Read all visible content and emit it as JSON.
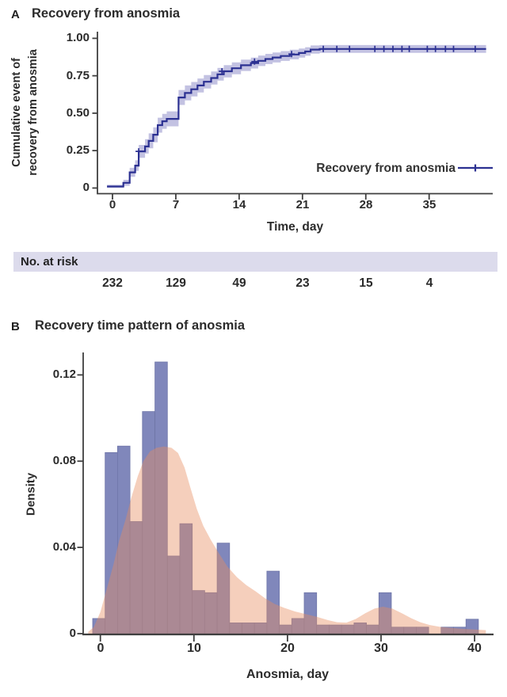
{
  "panel_a": {
    "label": "A",
    "title": "Recovery from anosmia",
    "legend_label": "Recovery from anosmia",
    "ylabel_line1": "Cumulative event of",
    "ylabel_line2": "recovery from anosmia",
    "xlabel": "Time, day",
    "at_risk_header": "No. at risk"
  },
  "panel_b": {
    "label": "B",
    "title": "Recovery time pattern of anosmia",
    "ylabel": "Density",
    "xlabel": "Anosmia, day"
  },
  "colors": {
    "km_line": "#2c3192",
    "km_band": "#7a78be",
    "km_band_opacity": 0.45,
    "bar": "#8087bb",
    "bar_edge": "#6f76a8",
    "density": "#e68c5f",
    "density_opacity": 0.42,
    "axis": "#3f3f3f",
    "strip_bg": "#dcdbec",
    "text": "#262626"
  },
  "chart_data": [
    {
      "type": "line",
      "subtype": "kaplan-meier-cumulative-incidence",
      "title": "Recovery from anosmia",
      "xlabel": "Time, day",
      "ylabel": "Cumulative event of recovery from anosmia",
      "xlim": [
        -1.7,
        42
      ],
      "ylim": [
        0,
        1.0
      ],
      "x_ticks": [
        "0",
        "7",
        "14",
        "21",
        "28",
        "35"
      ],
      "x_tick_values": [
        0,
        7,
        14,
        21,
        28,
        35
      ],
      "y_ticks": [
        "1.00",
        "0.75",
        "0.50",
        "0.25",
        "0"
      ],
      "y_tick_values": [
        1.0,
        0.75,
        0.5,
        0.25,
        0
      ],
      "grid": false,
      "legend_position": "bottom-right",
      "series": [
        {
          "name": "Recovery from anosmia",
          "x_start": -0.6,
          "x_end": 41.3,
          "steps": [
            [
              -0.6,
              0.01
            ],
            [
              1.2,
              0.035
            ],
            [
              1.9,
              0.105
            ],
            [
              2.5,
              0.15
            ],
            [
              2.9,
              0.245
            ],
            [
              3.6,
              0.278
            ],
            [
              4.0,
              0.315
            ],
            [
              4.5,
              0.356
            ],
            [
              5.0,
              0.42
            ],
            [
              5.5,
              0.446
            ],
            [
              6.0,
              0.462
            ],
            [
              7.3,
              0.605
            ],
            [
              8.0,
              0.635
            ],
            [
              8.7,
              0.66
            ],
            [
              9.4,
              0.685
            ],
            [
              10.1,
              0.71
            ],
            [
              10.9,
              0.735
            ],
            [
              11.6,
              0.76
            ],
            [
              12.3,
              0.78
            ],
            [
              13.2,
              0.8
            ],
            [
              14.2,
              0.82
            ],
            [
              15.3,
              0.835
            ],
            [
              16.1,
              0.85
            ],
            [
              16.9,
              0.862
            ],
            [
              17.7,
              0.872
            ],
            [
              18.6,
              0.882
            ],
            [
              19.6,
              0.892
            ],
            [
              20.6,
              0.902
            ],
            [
              21.3,
              0.912
            ],
            [
              21.9,
              0.925
            ],
            [
              22.9,
              0.929
            ]
          ],
          "censor_marks": [
            [
              2.9,
              0.245
            ],
            [
              12.1,
              0.78
            ],
            [
              15.7,
              0.845
            ],
            [
              19.8,
              0.895
            ],
            [
              23.3,
              0.929
            ],
            [
              24.8,
              0.929
            ],
            [
              26.2,
              0.929
            ],
            [
              29.0,
              0.929
            ],
            [
              30.0,
              0.929
            ],
            [
              31.0,
              0.929
            ],
            [
              32.0,
              0.929
            ],
            [
              32.8,
              0.929
            ],
            [
              34.8,
              0.929
            ],
            [
              35.7,
              0.929
            ],
            [
              36.8,
              0.929
            ],
            [
              37.7,
              0.929
            ],
            [
              40.1,
              0.929
            ]
          ],
          "ci_halfwidth": [
            [
              0,
              0.012
            ],
            [
              1.2,
              0.02
            ],
            [
              1.9,
              0.03
            ],
            [
              2.5,
              0.035
            ],
            [
              3,
              0.045
            ],
            [
              4,
              0.05
            ],
            [
              8,
              0.05
            ],
            [
              10,
              0.045
            ],
            [
              13,
              0.04
            ],
            [
              17,
              0.034
            ],
            [
              20,
              0.032
            ],
            [
              21.5,
              0.028
            ],
            [
              23,
              0.026
            ],
            [
              41.3,
              0.026
            ]
          ]
        }
      ],
      "at_risk": {
        "label": "No. at risk",
        "times": [
          0,
          7,
          14,
          21,
          28,
          35
        ],
        "counts": [
          "232",
          "129",
          "49",
          "23",
          "15",
          "4"
        ]
      }
    },
    {
      "type": "bar",
      "subtype": "histogram-with-density-overlay",
      "title": "Recovery time pattern of anosmia",
      "xlabel": "Anosmia, day",
      "ylabel": "Density",
      "xlim": [
        -2,
        42
      ],
      "ylim": [
        0,
        0.135
      ],
      "x_ticks": [
        "0",
        "10",
        "20",
        "30",
        "40"
      ],
      "x_tick_values": [
        0,
        10,
        20,
        30,
        40
      ],
      "y_ticks": [
        "0.12",
        "0.08",
        "0.04",
        "0"
      ],
      "y_tick_values": [
        0.12,
        0.08,
        0.04,
        0
      ],
      "grid": false,
      "bars": [
        [
          -0.82,
          0.51,
          0.007
        ],
        [
          0.51,
          1.84,
          0.084
        ],
        [
          1.84,
          3.17,
          0.087
        ],
        [
          3.17,
          4.5,
          0.052
        ],
        [
          4.5,
          5.83,
          0.103
        ],
        [
          5.83,
          7.16,
          0.126
        ],
        [
          7.16,
          8.49,
          0.036
        ],
        [
          8.49,
          9.82,
          0.051
        ],
        [
          9.82,
          11.15,
          0.02
        ],
        [
          11.15,
          12.48,
          0.019
        ],
        [
          12.48,
          13.81,
          0.042
        ],
        [
          13.81,
          15.14,
          0.005
        ],
        [
          15.14,
          16.47,
          0.005
        ],
        [
          16.47,
          17.8,
          0.005
        ],
        [
          17.8,
          19.13,
          0.029
        ],
        [
          19.13,
          20.46,
          0.004
        ],
        [
          20.46,
          21.79,
          0.007
        ],
        [
          21.79,
          23.12,
          0.019
        ],
        [
          23.12,
          24.45,
          0.004
        ],
        [
          24.45,
          25.78,
          0.004
        ],
        [
          25.78,
          27.11,
          0.004
        ],
        [
          27.11,
          28.44,
          0.005
        ],
        [
          28.44,
          29.77,
          0.004
        ],
        [
          29.77,
          31.1,
          0.019
        ],
        [
          31.1,
          32.43,
          0.003
        ],
        [
          32.43,
          33.76,
          0.003
        ],
        [
          33.76,
          35.09,
          0.003
        ],
        [
          36.42,
          37.75,
          0.003
        ],
        [
          37.75,
          39.08,
          0.003
        ],
        [
          39.08,
          40.41,
          0.0067
        ]
      ],
      "density_curve": [
        [
          -1.3,
          0.0008
        ],
        [
          -0.7,
          0.003
        ],
        [
          0,
          0.01
        ],
        [
          0.7,
          0.021
        ],
        [
          1.4,
          0.032
        ],
        [
          2,
          0.043
        ],
        [
          2.7,
          0.053
        ],
        [
          3.3,
          0.063
        ],
        [
          4,
          0.073
        ],
        [
          4.6,
          0.08
        ],
        [
          5.3,
          0.0845
        ],
        [
          6,
          0.0862
        ],
        [
          6.8,
          0.0868
        ],
        [
          7.6,
          0.0862
        ],
        [
          8.3,
          0.0838
        ],
        [
          9,
          0.077
        ],
        [
          9.6,
          0.068
        ],
        [
          10.3,
          0.058
        ],
        [
          11,
          0.05
        ],
        [
          11.8,
          0.0435
        ],
        [
          12.7,
          0.037
        ],
        [
          13.6,
          0.031
        ],
        [
          14.6,
          0.0262
        ],
        [
          15.6,
          0.0225
        ],
        [
          16.6,
          0.0196
        ],
        [
          17.6,
          0.0164
        ],
        [
          18.6,
          0.0138
        ],
        [
          19.6,
          0.012
        ],
        [
          20.8,
          0.0103
        ],
        [
          22,
          0.009
        ],
        [
          23.2,
          0.0077
        ],
        [
          24.3,
          0.0063
        ],
        [
          25.3,
          0.0053
        ],
        [
          26.3,
          0.0051
        ],
        [
          27.3,
          0.0068
        ],
        [
          28.3,
          0.0094
        ],
        [
          29.3,
          0.0116
        ],
        [
          30.2,
          0.0125
        ],
        [
          31.2,
          0.0116
        ],
        [
          32.2,
          0.0095
        ],
        [
          33.2,
          0.0072
        ],
        [
          34.2,
          0.0053
        ],
        [
          35.2,
          0.004
        ],
        [
          36.4,
          0.0031
        ],
        [
          37.6,
          0.0026
        ],
        [
          38.8,
          0.0022
        ],
        [
          40,
          0.0019
        ],
        [
          41.2,
          0.0016
        ]
      ]
    }
  ]
}
